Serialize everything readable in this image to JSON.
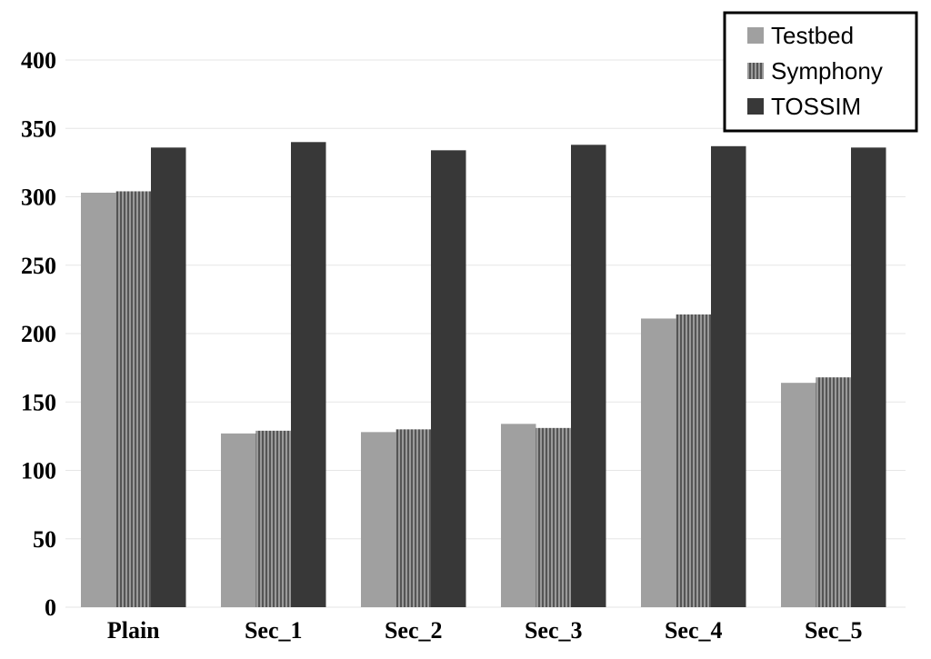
{
  "chart_data": {
    "type": "bar",
    "title": "",
    "xlabel": "",
    "ylabel": "",
    "ylim": [
      0,
      400
    ],
    "yticks": [
      0,
      50,
      100,
      150,
      200,
      250,
      300,
      350,
      400
    ],
    "grid": true,
    "legend_position": "top-right",
    "categories": [
      "Plain",
      "Sec_1",
      "Sec_2",
      "Sec_3",
      "Sec_4",
      "Sec_5"
    ],
    "series": [
      {
        "name": "Testbed",
        "color": "#a0a0a0",
        "pattern": "solid",
        "values": [
          303,
          127,
          128,
          134,
          211,
          164
        ]
      },
      {
        "name": "Symphony",
        "color": "#808080",
        "pattern": "vertical-stripes",
        "values": [
          304,
          129,
          130,
          131,
          214,
          168
        ]
      },
      {
        "name": "TOSSIM",
        "color": "#383838",
        "pattern": "solid",
        "values": [
          336,
          340,
          334,
          338,
          337,
          336
        ]
      }
    ]
  }
}
